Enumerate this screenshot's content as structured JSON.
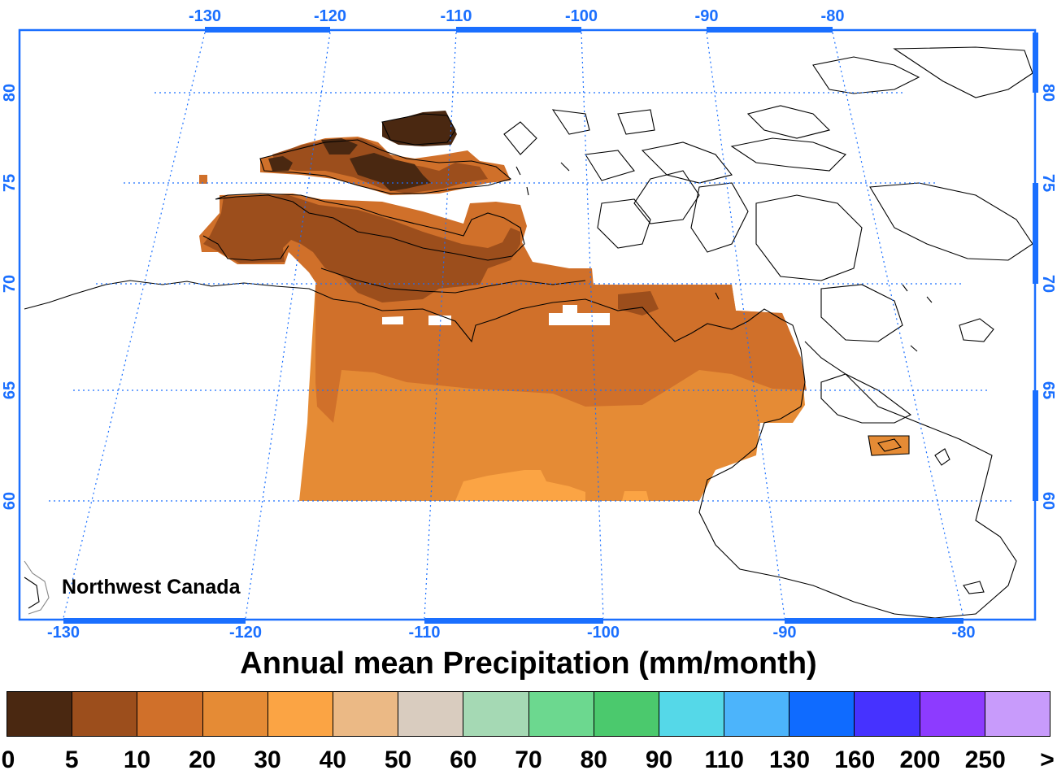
{
  "map": {
    "region_label": "Northwest Canada",
    "top_lon_ticks": [
      "-130",
      "-120",
      "-110",
      "-100",
      "-90",
      "-80"
    ],
    "bottom_lon_ticks": [
      "-130",
      "-120",
      "-110",
      "-100",
      "-90",
      "-80"
    ],
    "lat_ticks": [
      "80",
      "75",
      "70",
      "65",
      "60"
    ],
    "axis_color": "#1a6fff",
    "gridline_color": "#1a6fff",
    "coastline_color": "#000000",
    "gridlines": true,
    "projection": "polar stereographic"
  },
  "title": "Annual mean Precipitation (mm/month)",
  "colorbar": {
    "labels": [
      "0",
      "5",
      "10",
      "20",
      "30",
      "40",
      "50",
      "60",
      "70",
      "80",
      "90",
      "110",
      "130",
      "160",
      "200",
      "250",
      ">"
    ],
    "colors": [
      "#4a2811",
      "#9c4e1c",
      "#d0702a",
      "#e58b35",
      "#fba444",
      "#ebb985",
      "#d9ccbf",
      "#a5d9b4",
      "#6cd88f",
      "#4bc96d",
      "#55d8e8",
      "#4cb4fb",
      "#0f6bff",
      "#4632ff",
      "#8d3bff",
      "#c89bfb"
    ]
  },
  "field_colors": {
    "c0_5": "#4a2811",
    "c5_10": "#9c4e1c",
    "c10_20": "#d0702a",
    "c20_30": "#e58b35",
    "c30_40": "#fba444"
  }
}
